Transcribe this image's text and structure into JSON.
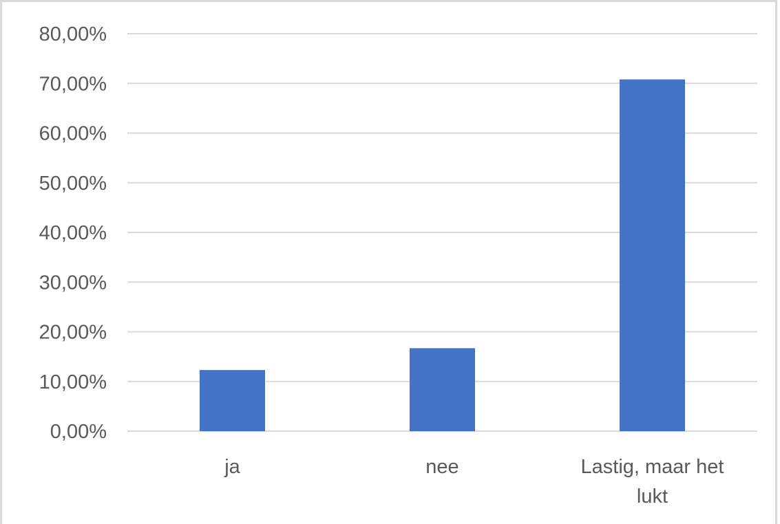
{
  "chart_data": {
    "type": "bar",
    "title": "",
    "xlabel": "",
    "ylabel": "",
    "categories": [
      [
        "ja"
      ],
      [
        "nee"
      ],
      [
        "Lastig, maar het",
        "lukt"
      ]
    ],
    "category_labels": [
      "ja",
      "nee",
      "Lastig, maar het lukt"
    ],
    "values": [
      12.3,
      16.7,
      70.8
    ],
    "ylim": [
      0,
      80
    ],
    "yticks": [
      0,
      10,
      20,
      30,
      40,
      50,
      60,
      70,
      80
    ],
    "ytick_labels": [
      "0,00%",
      "10,00%",
      "20,00%",
      "30,00%",
      "40,00%",
      "50,00%",
      "60,00%",
      "70,00%",
      "80,00%"
    ],
    "grid": true,
    "legend": "none",
    "bar_color": "#4472c4",
    "grid_color": "#d9d9d9",
    "text_color": "#595959"
  }
}
